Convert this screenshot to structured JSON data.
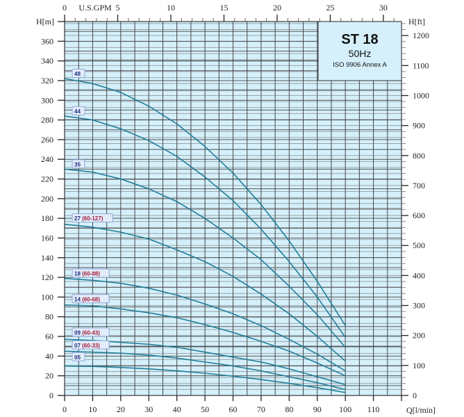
{
  "chart_data": {
    "type": "line",
    "title": "ST 18",
    "subtitle": "50Hz",
    "note": "ISO 9906 Annex A",
    "xlabel": "Q[l/min]",
    "ylabel": "H[m]",
    "y2label": "H[ft]",
    "x2label": "U.S.GPM",
    "xlim": [
      0,
      120
    ],
    "ylim": [
      0,
      380
    ],
    "xticks": [
      0,
      10,
      20,
      30,
      40,
      50,
      60,
      70,
      80,
      90,
      100,
      110
    ],
    "yticks": [
      0,
      20,
      40,
      60,
      80,
      100,
      120,
      140,
      160,
      180,
      200,
      220,
      240,
      260,
      280,
      300,
      320,
      340,
      360
    ],
    "y2ticks": [
      0,
      100,
      200,
      300,
      400,
      500,
      600,
      700,
      800,
      900,
      1000,
      1100,
      1200
    ],
    "x2ticks": [
      0,
      5,
      10,
      15,
      20,
      25,
      30
    ],
    "grid": true,
    "colors": {
      "curve": "#1f7d98",
      "plot_bg": "#d5f0fb",
      "label_text": "#1d2f7a",
      "label_range": "#a0203a"
    },
    "x": [
      0,
      10,
      20,
      30,
      40,
      50,
      60,
      70,
      80,
      90,
      100
    ],
    "series": [
      {
        "name": "48",
        "range": "",
        "values": [
          322,
          317,
          308,
          294,
          276,
          253,
          226,
          194,
          157,
          116,
          71
        ]
      },
      {
        "name": "44",
        "range": "",
        "values": [
          284,
          280,
          271,
          259,
          243,
          222,
          198,
          169,
          136,
          100,
          59
        ]
      },
      {
        "name": "35",
        "range": "",
        "values": [
          230,
          227,
          220,
          210,
          197,
          180,
          160,
          138,
          111,
          82,
          49
        ]
      },
      {
        "name": "27",
        "range": "(60-127)",
        "values": [
          174,
          171,
          166,
          159,
          148,
          136,
          121,
          103,
          83,
          60,
          35
        ]
      },
      {
        "name": "18",
        "range": "(60-88)",
        "values": [
          119,
          117,
          114,
          109,
          102,
          93,
          83,
          71,
          57,
          42,
          25
        ]
      },
      {
        "name": "14",
        "range": "(60-68)",
        "values": [
          92,
          91,
          88,
          84,
          79,
          72,
          64,
          55,
          45,
          33,
          20
        ]
      },
      {
        "name": "09",
        "range": "(60-43)",
        "values": [
          57,
          56,
          54,
          52,
          49,
          44,
          39,
          34,
          27,
          19,
          11
        ]
      },
      {
        "name": "07",
        "range": "(60-33)",
        "values": [
          45,
          44,
          43,
          41,
          38,
          34,
          30,
          25,
          19,
          13,
          6
        ]
      },
      {
        "name": "05",
        "range": "",
        "values": [
          30,
          29.5,
          28.5,
          27,
          25,
          22.6,
          19.6,
          16.2,
          12.3,
          7.9,
          3
        ]
      }
    ]
  }
}
